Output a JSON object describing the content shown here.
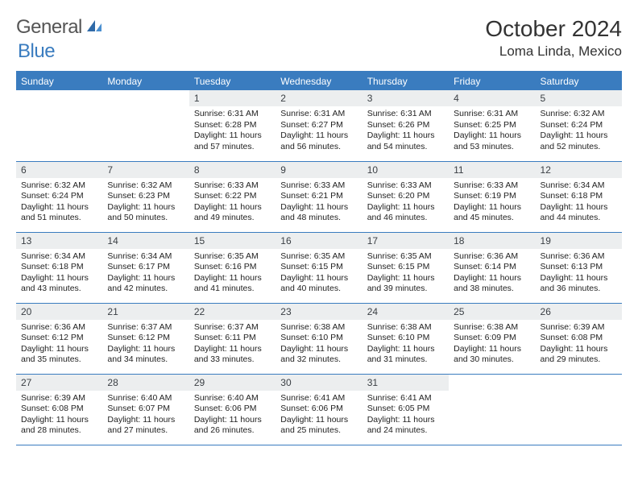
{
  "brand": {
    "part1": "General",
    "part2": "Blue"
  },
  "title": {
    "month": "October 2024",
    "location": "Loma Linda, Mexico"
  },
  "colors": {
    "accent": "#3a7cbf",
    "headerRowBg": "#eceeef"
  },
  "weekdays": [
    "Sunday",
    "Monday",
    "Tuesday",
    "Wednesday",
    "Thursday",
    "Friday",
    "Saturday"
  ],
  "weeks": [
    [
      null,
      null,
      {
        "n": "1",
        "sr": "6:31 AM",
        "ss": "6:28 PM",
        "dl": "11 hours and 57 minutes."
      },
      {
        "n": "2",
        "sr": "6:31 AM",
        "ss": "6:27 PM",
        "dl": "11 hours and 56 minutes."
      },
      {
        "n": "3",
        "sr": "6:31 AM",
        "ss": "6:26 PM",
        "dl": "11 hours and 54 minutes."
      },
      {
        "n": "4",
        "sr": "6:31 AM",
        "ss": "6:25 PM",
        "dl": "11 hours and 53 minutes."
      },
      {
        "n": "5",
        "sr": "6:32 AM",
        "ss": "6:24 PM",
        "dl": "11 hours and 52 minutes."
      }
    ],
    [
      {
        "n": "6",
        "sr": "6:32 AM",
        "ss": "6:24 PM",
        "dl": "11 hours and 51 minutes."
      },
      {
        "n": "7",
        "sr": "6:32 AM",
        "ss": "6:23 PM",
        "dl": "11 hours and 50 minutes."
      },
      {
        "n": "8",
        "sr": "6:33 AM",
        "ss": "6:22 PM",
        "dl": "11 hours and 49 minutes."
      },
      {
        "n": "9",
        "sr": "6:33 AM",
        "ss": "6:21 PM",
        "dl": "11 hours and 48 minutes."
      },
      {
        "n": "10",
        "sr": "6:33 AM",
        "ss": "6:20 PM",
        "dl": "11 hours and 46 minutes."
      },
      {
        "n": "11",
        "sr": "6:33 AM",
        "ss": "6:19 PM",
        "dl": "11 hours and 45 minutes."
      },
      {
        "n": "12",
        "sr": "6:34 AM",
        "ss": "6:18 PM",
        "dl": "11 hours and 44 minutes."
      }
    ],
    [
      {
        "n": "13",
        "sr": "6:34 AM",
        "ss": "6:18 PM",
        "dl": "11 hours and 43 minutes."
      },
      {
        "n": "14",
        "sr": "6:34 AM",
        "ss": "6:17 PM",
        "dl": "11 hours and 42 minutes."
      },
      {
        "n": "15",
        "sr": "6:35 AM",
        "ss": "6:16 PM",
        "dl": "11 hours and 41 minutes."
      },
      {
        "n": "16",
        "sr": "6:35 AM",
        "ss": "6:15 PM",
        "dl": "11 hours and 40 minutes."
      },
      {
        "n": "17",
        "sr": "6:35 AM",
        "ss": "6:15 PM",
        "dl": "11 hours and 39 minutes."
      },
      {
        "n": "18",
        "sr": "6:36 AM",
        "ss": "6:14 PM",
        "dl": "11 hours and 38 minutes."
      },
      {
        "n": "19",
        "sr": "6:36 AM",
        "ss": "6:13 PM",
        "dl": "11 hours and 36 minutes."
      }
    ],
    [
      {
        "n": "20",
        "sr": "6:36 AM",
        "ss": "6:12 PM",
        "dl": "11 hours and 35 minutes."
      },
      {
        "n": "21",
        "sr": "6:37 AM",
        "ss": "6:12 PM",
        "dl": "11 hours and 34 minutes."
      },
      {
        "n": "22",
        "sr": "6:37 AM",
        "ss": "6:11 PM",
        "dl": "11 hours and 33 minutes."
      },
      {
        "n": "23",
        "sr": "6:38 AM",
        "ss": "6:10 PM",
        "dl": "11 hours and 32 minutes."
      },
      {
        "n": "24",
        "sr": "6:38 AM",
        "ss": "6:10 PM",
        "dl": "11 hours and 31 minutes."
      },
      {
        "n": "25",
        "sr": "6:38 AM",
        "ss": "6:09 PM",
        "dl": "11 hours and 30 minutes."
      },
      {
        "n": "26",
        "sr": "6:39 AM",
        "ss": "6:08 PM",
        "dl": "11 hours and 29 minutes."
      }
    ],
    [
      {
        "n": "27",
        "sr": "6:39 AM",
        "ss": "6:08 PM",
        "dl": "11 hours and 28 minutes."
      },
      {
        "n": "28",
        "sr": "6:40 AM",
        "ss": "6:07 PM",
        "dl": "11 hours and 27 minutes."
      },
      {
        "n": "29",
        "sr": "6:40 AM",
        "ss": "6:06 PM",
        "dl": "11 hours and 26 minutes."
      },
      {
        "n": "30",
        "sr": "6:41 AM",
        "ss": "6:06 PM",
        "dl": "11 hours and 25 minutes."
      },
      {
        "n": "31",
        "sr": "6:41 AM",
        "ss": "6:05 PM",
        "dl": "11 hours and 24 minutes."
      },
      null,
      null
    ]
  ],
  "labels": {
    "sunrise": "Sunrise: ",
    "sunset": "Sunset: ",
    "daylight": "Daylight: "
  }
}
